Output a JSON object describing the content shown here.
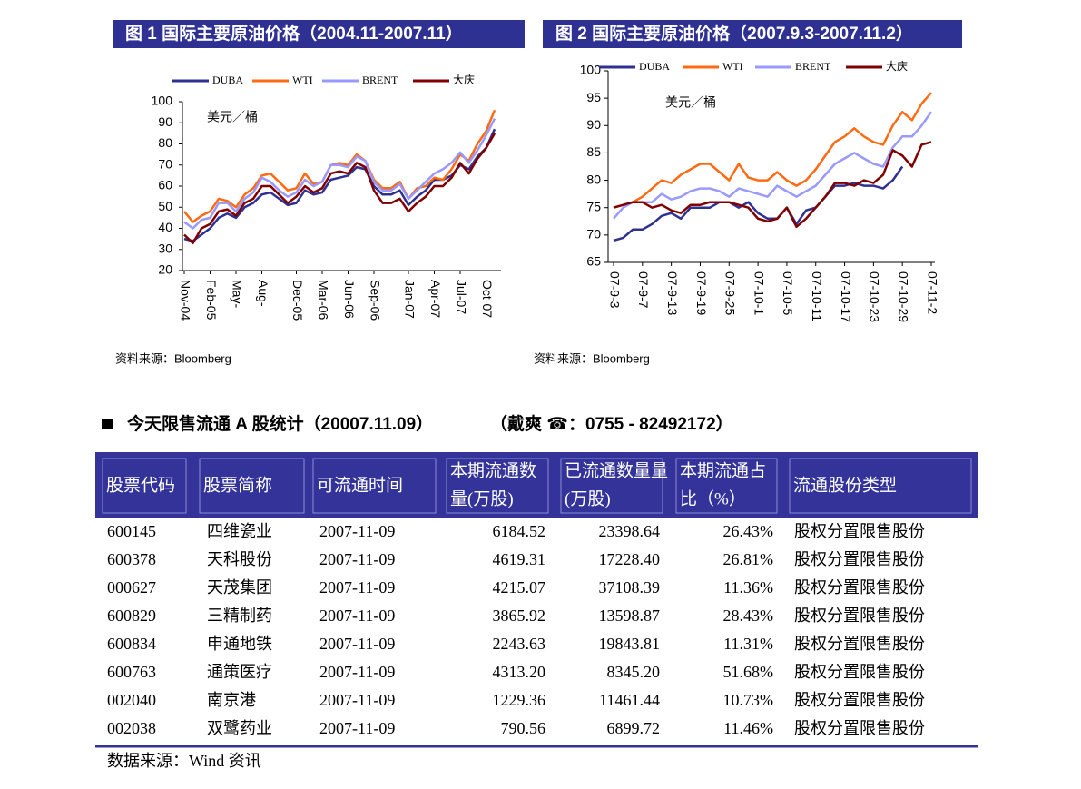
{
  "chart_data": [
    {
      "type": "line",
      "title": "图 1 国际主要原油价格（2004.11-2007.11）",
      "y_label": "美元／桶",
      "source": "资料来源：Bloomberg",
      "categories": [
        "Nov-04",
        null,
        null,
        "Feb-05",
        null,
        null,
        "May-",
        null,
        null,
        "Aug-",
        null,
        null,
        null,
        "Dec-05",
        null,
        null,
        "Mar-06",
        null,
        null,
        "Jun-06",
        null,
        null,
        "Sep-06",
        null,
        null,
        null,
        "Jan-07",
        null,
        null,
        "Apr-07",
        null,
        null,
        "Jul-07",
        null,
        null,
        "Oct-07",
        null
      ],
      "series": [
        {
          "name": "DUBA",
          "color": "#2e3192",
          "values": [
            35,
            34,
            37,
            40,
            45,
            47,
            45,
            50,
            52,
            56,
            57,
            54,
            51,
            52,
            58,
            56,
            57,
            63,
            64,
            65,
            69,
            68,
            60,
            56,
            56,
            58,
            51,
            55,
            58,
            63,
            63,
            65,
            70,
            68,
            74,
            78,
            87
          ]
        },
        {
          "name": "WTI",
          "color": "#ff6a13",
          "values": [
            48,
            43,
            46,
            48,
            54,
            53,
            50,
            56,
            59,
            65,
            66,
            62,
            58,
            59,
            66,
            61,
            62,
            70,
            71,
            70,
            75,
            72,
            63,
            59,
            59,
            62,
            54,
            59,
            60,
            64,
            63,
            68,
            75,
            72,
            80,
            86,
            96
          ]
        },
        {
          "name": "BRENT",
          "color": "#9999ff",
          "values": [
            43,
            40,
            44,
            45,
            52,
            52,
            48,
            54,
            57,
            64,
            62,
            58,
            55,
            57,
            63,
            60,
            62,
            70,
            70,
            69,
            74,
            72,
            62,
            58,
            58,
            61,
            54,
            58,
            62,
            66,
            68,
            71,
            76,
            71,
            77,
            84,
            92
          ]
        },
        {
          "name": "大庆",
          "color": "#800000",
          "values": [
            37,
            33,
            40,
            42,
            48,
            49,
            46,
            52,
            54,
            60,
            60,
            56,
            52,
            55,
            60,
            57,
            59,
            66,
            67,
            66,
            71,
            69,
            58,
            52,
            52,
            54,
            48,
            52,
            55,
            60,
            60,
            64,
            71,
            66,
            73,
            78,
            85
          ]
        }
      ],
      "ylim": [
        20,
        100
      ],
      "yticks": [
        20,
        30,
        40,
        50,
        60,
        70,
        80,
        90,
        100
      ]
    },
    {
      "type": "line",
      "title": "图 2 国际主要原油价格（2007.9.3-2007.11.2）",
      "y_label": "美元／桶",
      "source": "资料来源：Bloomberg",
      "categories": [
        "07-9-3",
        null,
        null,
        "07-9-7",
        null,
        null,
        "07-9-13",
        null,
        null,
        "07-9-19",
        null,
        null,
        "07-9-25",
        null,
        null,
        "07-10-1",
        null,
        null,
        "07-10-5",
        null,
        null,
        "07-10-11",
        null,
        null,
        "07-10-17",
        null,
        null,
        "07-10-23",
        null,
        null,
        "07-10-29",
        null,
        null,
        "07-11-2"
      ],
      "series": [
        {
          "name": "DUBA",
          "color": "#2e3192",
          "values": [
            69,
            69.5,
            71,
            71,
            72,
            73.5,
            74,
            73,
            75,
            75,
            75,
            76,
            76,
            75,
            76,
            74,
            73,
            73,
            75,
            72,
            74.5,
            75,
            77,
            79,
            79,
            79.5,
            79,
            79,
            78.5,
            80,
            82.5,
            null,
            null,
            null
          ]
        },
        {
          "name": "WTI",
          "color": "#ff6a13",
          "values": [
            75,
            75.5,
            76,
            77,
            78.5,
            80,
            79.5,
            81,
            82,
            83,
            83,
            81.5,
            80,
            83,
            80.5,
            80,
            80,
            81.5,
            80,
            79,
            80,
            82,
            84.5,
            87,
            88,
            89.5,
            88,
            87,
            86.5,
            90,
            92.5,
            91,
            94,
            96
          ]
        },
        {
          "name": "BRENT",
          "color": "#9999ff",
          "values": [
            73,
            75,
            76,
            76,
            76,
            77.5,
            76.5,
            77,
            78,
            78.5,
            78.5,
            78,
            77,
            78.5,
            78,
            77.5,
            77,
            79,
            78,
            77,
            78,
            79,
            81,
            83,
            84,
            85,
            84,
            83,
            82.5,
            86,
            88,
            88,
            90,
            92.5
          ]
        },
        {
          "name": "大庆",
          "color": "#800000",
          "values": [
            75,
            75.5,
            76,
            76,
            75,
            75.5,
            74.5,
            74,
            75.5,
            75.5,
            76,
            76,
            76,
            75.5,
            75,
            73,
            72.5,
            73,
            75,
            71.5,
            73,
            75,
            77,
            79.5,
            79.5,
            79,
            80,
            79.5,
            81,
            85.5,
            84.5,
            82.5,
            86.5,
            87
          ]
        }
      ],
      "ylim": [
        65,
        100
      ],
      "yticks": [
        65,
        70,
        75,
        80,
        85,
        90,
        95,
        100
      ]
    }
  ],
  "section": {
    "title": "今天限售流通 A 股统计（20007.11.09）",
    "contact": "（戴爽 ☎：0755 - 82492172）"
  },
  "table": {
    "header": [
      [
        "股票代码"
      ],
      [
        "股票简称"
      ],
      [
        "可流通时间"
      ],
      [
        "本期流通数",
        "量(万股)"
      ],
      [
        "已流通数量量",
        "(万股)"
      ],
      [
        "本期流通占",
        "比（%）"
      ],
      [
        "流通股份类型"
      ]
    ],
    "rows": [
      [
        "600145",
        "四维瓷业",
        "2007-11-09",
        "6184.52",
        "23398.64",
        "26.43%",
        "股权分置限售股份"
      ],
      [
        "600378",
        "天科股份",
        "2007-11-09",
        "4619.31",
        "17228.40",
        "26.81%",
        "股权分置限售股份"
      ],
      [
        "000627",
        "天茂集团",
        "2007-11-09",
        "4215.07",
        "37108.39",
        "11.36%",
        "股权分置限售股份"
      ],
      [
        "600829",
        "三精制药",
        "2007-11-09",
        "3865.92",
        "13598.87",
        "28.43%",
        "股权分置限售股份"
      ],
      [
        "600834",
        "申通地铁",
        "2007-11-09",
        "2243.63",
        "19843.81",
        "11.31%",
        "股权分置限售股份"
      ],
      [
        "600763",
        "通策医疗",
        "2007-11-09",
        "4313.20",
        "8345.20",
        "51.68%",
        "股权分置限售股份"
      ],
      [
        "002040",
        "南京港",
        "2007-11-09",
        "1229.36",
        "11461.44",
        "10.73%",
        "股权分置限售股份"
      ],
      [
        "002038",
        "双鹭药业",
        "2007-11-09",
        "790.56",
        "6899.72",
        "11.46%",
        "股权分置限售股份"
      ]
    ],
    "source": "数据来源：Wind 资讯"
  }
}
